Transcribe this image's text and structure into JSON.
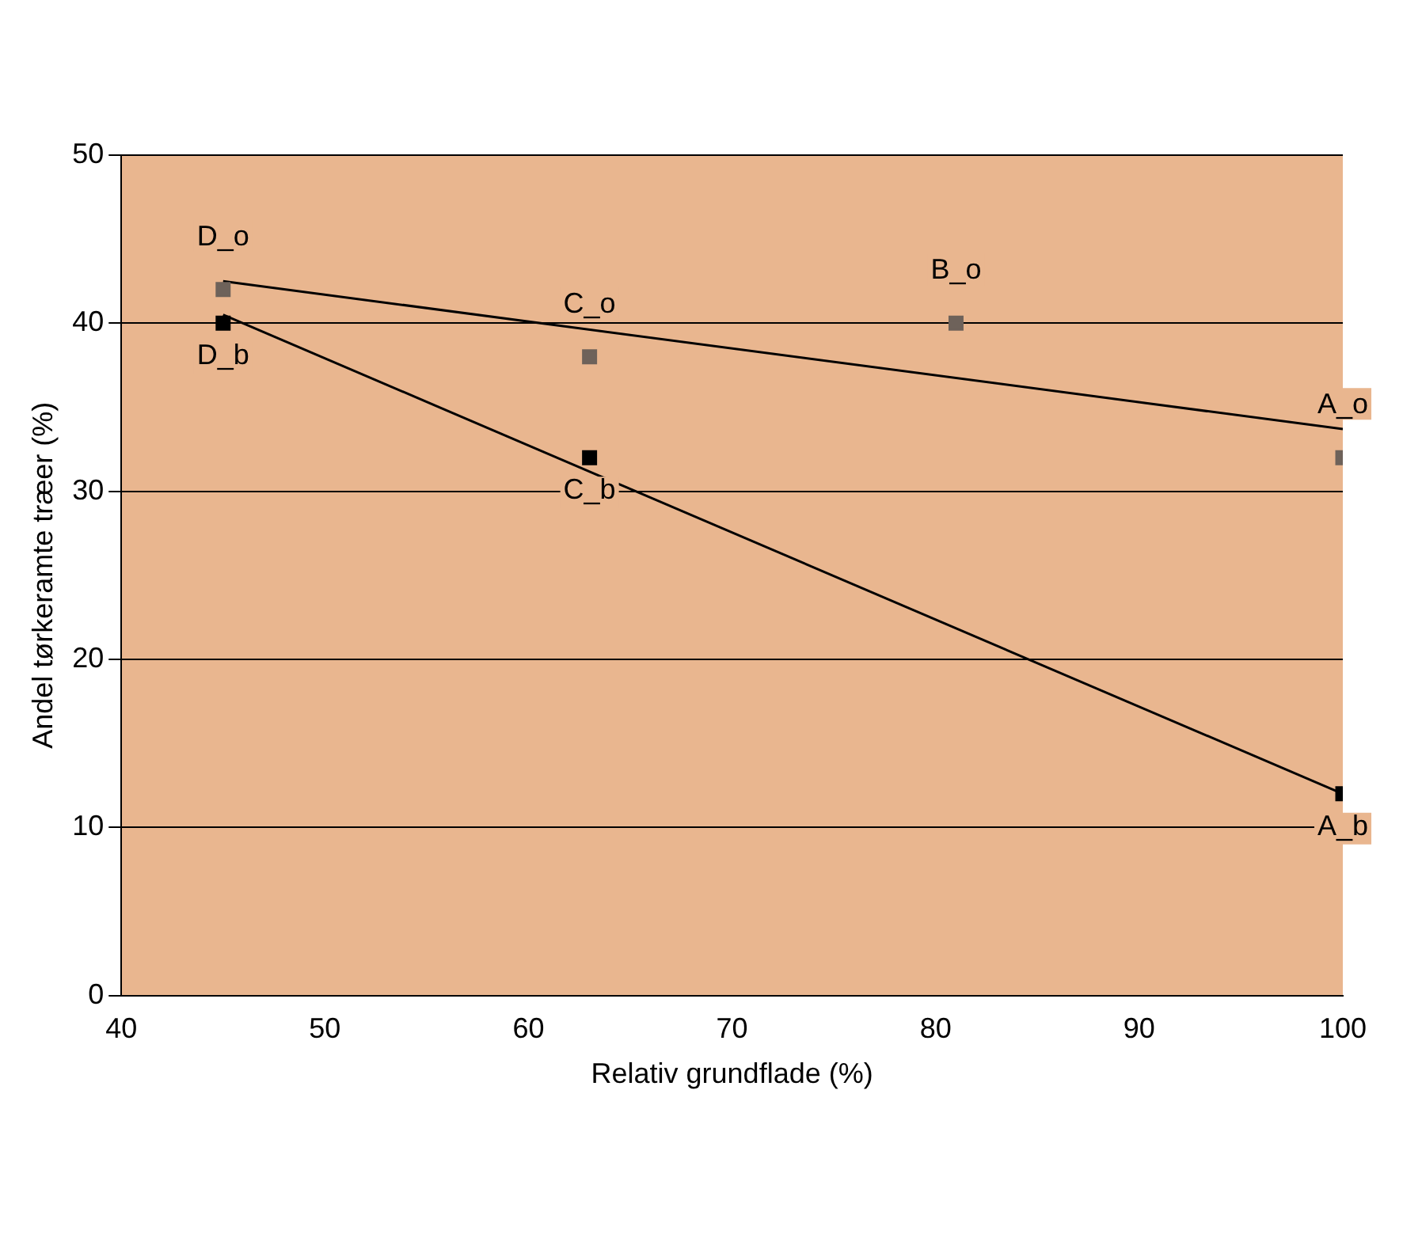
{
  "chart_data": {
    "type": "scatter",
    "xlabel": "Relativ grundflade (%)",
    "ylabel": "Andel tørkeramte træer (%)",
    "xlim": [
      40,
      100
    ],
    "xticks": [
      40,
      50,
      60,
      70,
      80,
      90,
      100
    ],
    "ylim": [
      0,
      50
    ],
    "yticks": [
      0,
      10,
      20,
      30,
      40,
      50
    ],
    "grid": "y",
    "legend": false,
    "series": [
      {
        "color": "#6e625a",
        "marker": "square",
        "x": [
          45,
          63,
          81,
          100
        ],
        "values": [
          42,
          38,
          40,
          32
        ]
      },
      {
        "color": "#000000",
        "marker": "square",
        "x": [
          45,
          63,
          100
        ],
        "values": [
          40,
          32,
          12
        ]
      },
      {
        "type": "line",
        "color": "#000000",
        "marker": "none",
        "x": [
          45,
          100
        ],
        "values": [
          42.5,
          33.7
        ]
      },
      {
        "type": "line",
        "color": "#000000",
        "marker": "none",
        "x": [
          45,
          100
        ],
        "values": [
          40.5,
          12
        ]
      }
    ],
    "annotations": [
      {
        "text": "D_o",
        "x": 45,
        "y": 42
      },
      {
        "text": "D_b",
        "x": 45,
        "y": 40
      },
      {
        "text": "C_o",
        "x": 63,
        "y": 38
      },
      {
        "text": "C_b",
        "x": 63,
        "y": 32
      },
      {
        "text": "B_o",
        "x": 81,
        "y": 40
      },
      {
        "text": "A_o",
        "x": 100,
        "y": 32
      },
      {
        "text": "A_b",
        "x": 100,
        "y": 12
      }
    ]
  }
}
